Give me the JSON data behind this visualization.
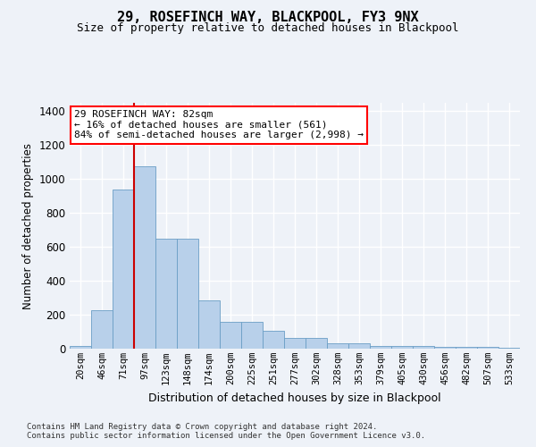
{
  "title1": "29, ROSEFINCH WAY, BLACKPOOL, FY3 9NX",
  "title2": "Size of property relative to detached houses in Blackpool",
  "xlabel": "Distribution of detached houses by size in Blackpool",
  "ylabel": "Number of detached properties",
  "footnote1": "Contains HM Land Registry data © Crown copyright and database right 2024.",
  "footnote2": "Contains public sector information licensed under the Open Government Licence v3.0.",
  "annotation_line1": "29 ROSEFINCH WAY: 82sqm",
  "annotation_line2": "← 16% of detached houses are smaller (561)",
  "annotation_line3": "84% of semi-detached houses are larger (2,998) →",
  "bar_color": "#b8d0ea",
  "bar_edge_color": "#6a9ec5",
  "line_color": "#cc0000",
  "categories": [
    "20sqm",
    "46sqm",
    "71sqm",
    "97sqm",
    "123sqm",
    "148sqm",
    "174sqm",
    "200sqm",
    "225sqm",
    "251sqm",
    "277sqm",
    "302sqm",
    "328sqm",
    "353sqm",
    "379sqm",
    "405sqm",
    "430sqm",
    "456sqm",
    "482sqm",
    "507sqm",
    "533sqm"
  ],
  "values": [
    15,
    225,
    940,
    1075,
    650,
    650,
    285,
    158,
    158,
    105,
    63,
    63,
    32,
    32,
    18,
    18,
    18,
    10,
    10,
    13,
    5
  ],
  "ylim": [
    0,
    1450
  ],
  "yticks": [
    0,
    200,
    400,
    600,
    800,
    1000,
    1200,
    1400
  ],
  "vline_x_index": 2.5,
  "background_color": "#eef2f8",
  "plot_bg_color": "#eef2f8"
}
